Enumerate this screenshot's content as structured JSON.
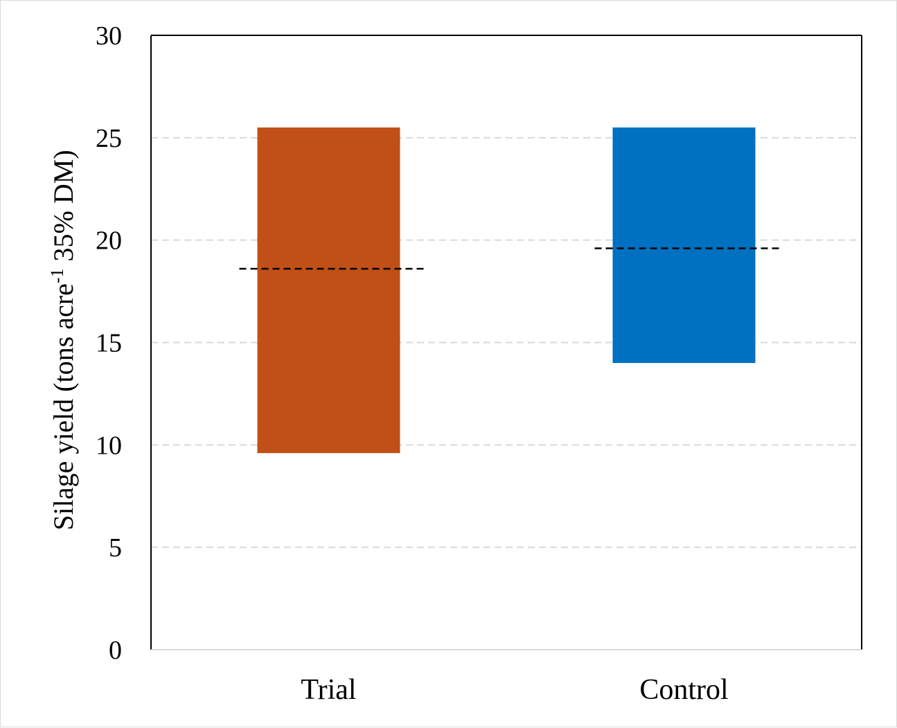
{
  "chart_data": {
    "type": "bar",
    "subtype": "floating range bars with mean line",
    "categories": [
      "Trial",
      "Control"
    ],
    "series": [
      {
        "category": "Trial",
        "min": 9.6,
        "max": 25.5,
        "mean": 18.6,
        "color": "#C05017"
      },
      {
        "category": "Control",
        "min": 14.0,
        "max": 25.5,
        "mean": 19.6,
        "color": "#0070C0"
      }
    ],
    "ylabel": {
      "prefix": "Silage yield (tons acre",
      "superscript": "-1",
      "suffix": " 35% DM)"
    },
    "xlabel": "",
    "title": "",
    "ylim": [
      0,
      30
    ],
    "yticks": [
      "0",
      "5",
      "10",
      "15",
      "20",
      "25",
      "30"
    ],
    "grid": true,
    "legend": "none",
    "mean_line_color": "#000000"
  }
}
